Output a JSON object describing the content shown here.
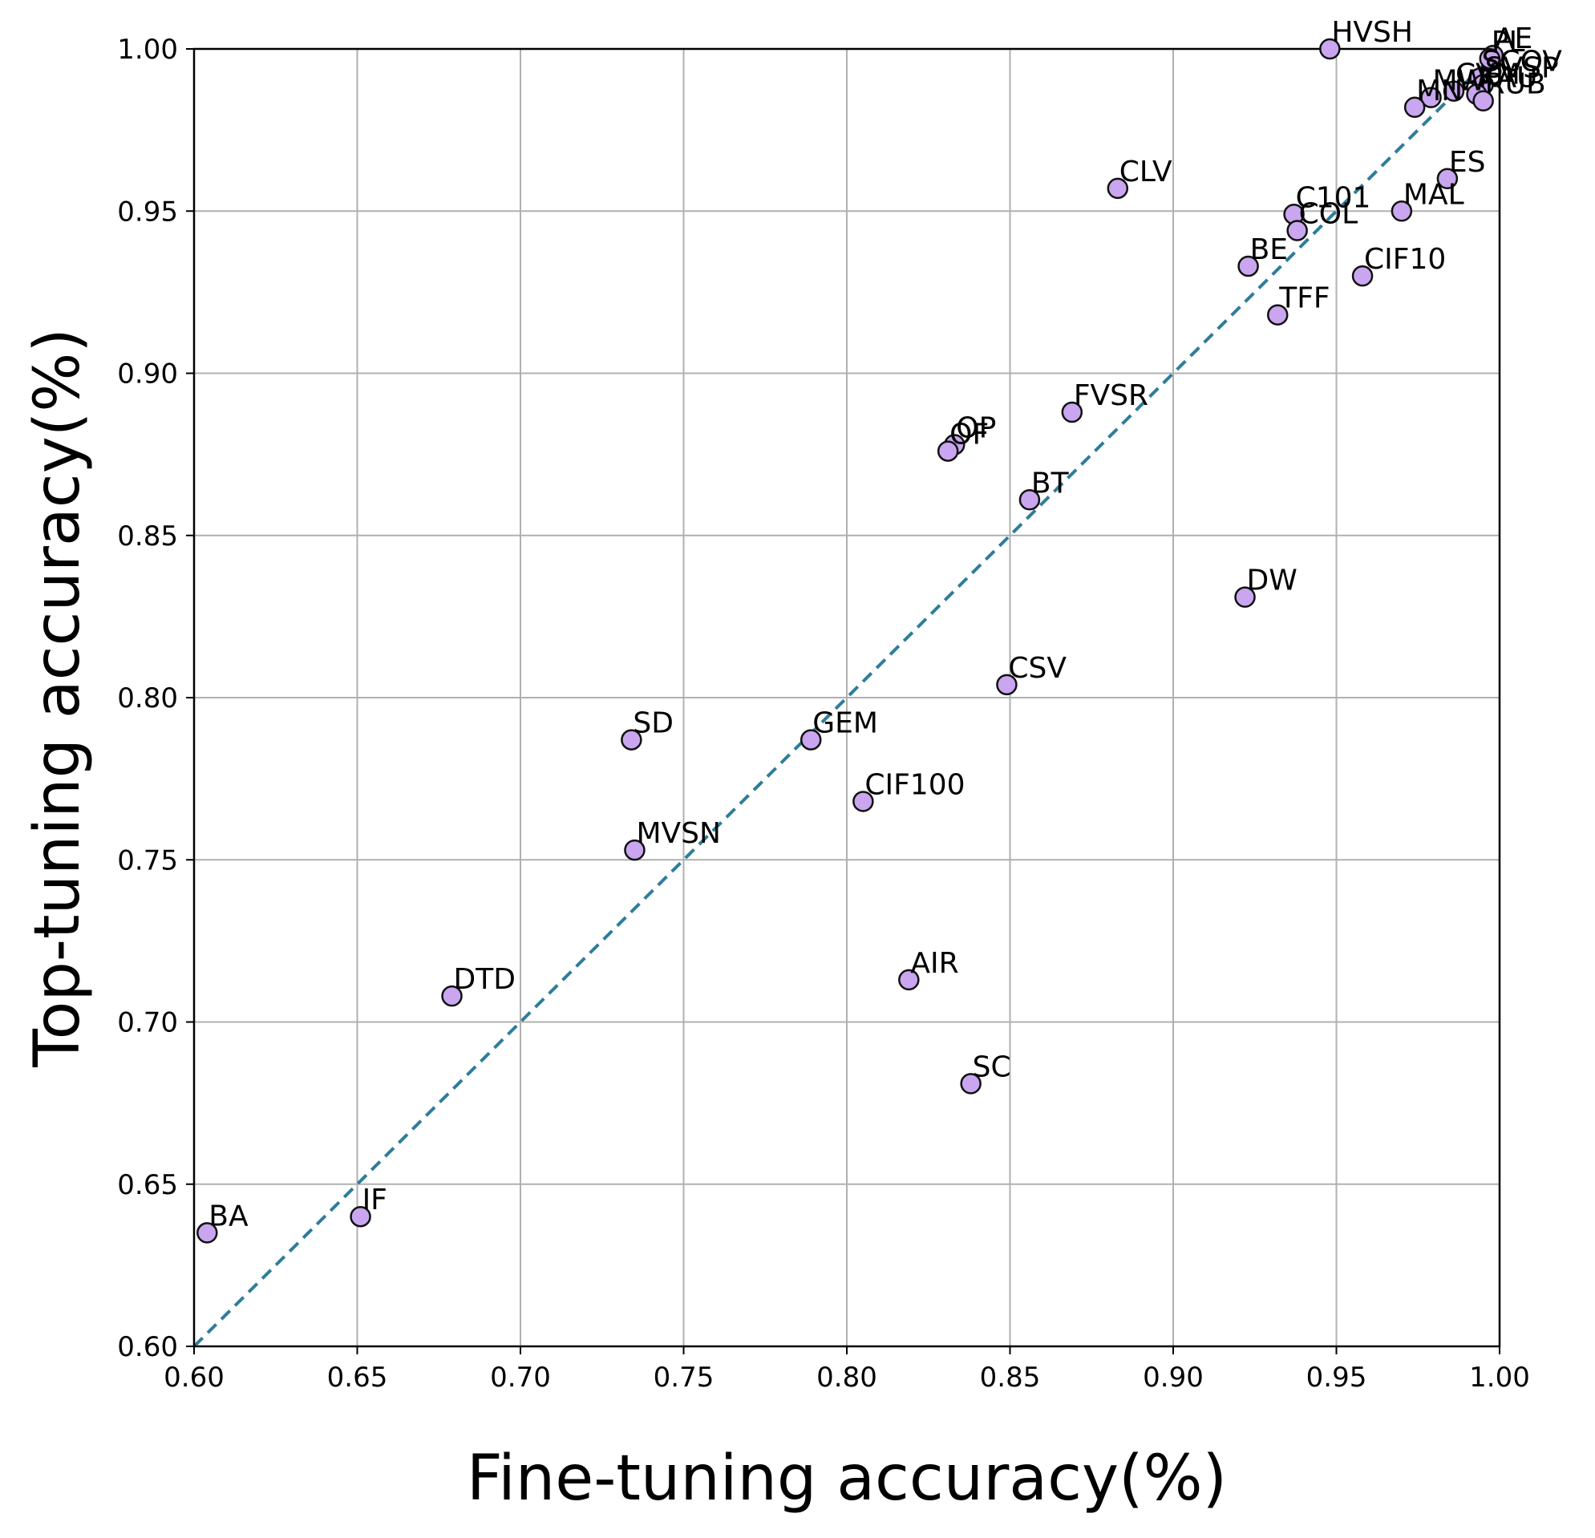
{
  "chart_data": {
    "type": "scatter",
    "xlabel": "Fine-tuning accuracy(%)",
    "ylabel": "Top-tuning accuracy(%)",
    "xlim": [
      0.6,
      1.0
    ],
    "ylim": [
      0.6,
      1.0
    ],
    "xticks": [
      "0.60",
      "0.65",
      "0.70",
      "0.75",
      "0.80",
      "0.85",
      "0.90",
      "0.95",
      "1.00"
    ],
    "yticks": [
      "0.60",
      "0.65",
      "0.70",
      "0.75",
      "0.80",
      "0.85",
      "0.90",
      "0.95",
      "1.00"
    ],
    "grid": true,
    "reference_line": {
      "from": [
        0.6,
        0.6
      ],
      "to": [
        1.0,
        1.0
      ],
      "style": "dashed",
      "color": "#2e7d9a"
    },
    "marker_color": "#c9a6ef",
    "marker_edge": "#111111",
    "points": [
      {
        "label": "HVSH",
        "x": 0.948,
        "y": 1.0
      },
      {
        "label": "AE",
        "x": 0.998,
        "y": 0.998
      },
      {
        "label": "PL",
        "x": 0.997,
        "y": 0.997
      },
      {
        "label": "SCOV",
        "x": 0.994,
        "y": 0.991
      },
      {
        "label": "SVSP",
        "x": 0.995,
        "y": 0.989
      },
      {
        "label": "CVM",
        "x": 0.986,
        "y": 0.987
      },
      {
        "label": "MW",
        "x": 0.979,
        "y": 0.985
      },
      {
        "label": "KAU",
        "x": 0.993,
        "y": 0.986
      },
      {
        "label": "RUB",
        "x": 0.995,
        "y": 0.984
      },
      {
        "label": "MN",
        "x": 0.974,
        "y": 0.982
      },
      {
        "label": "ES",
        "x": 0.984,
        "y": 0.96
      },
      {
        "label": "CLV",
        "x": 0.883,
        "y": 0.957
      },
      {
        "label": "MAL",
        "x": 0.97,
        "y": 0.95
      },
      {
        "label": "C101",
        "x": 0.937,
        "y": 0.949
      },
      {
        "label": "COL",
        "x": 0.938,
        "y": 0.944
      },
      {
        "label": "BE",
        "x": 0.923,
        "y": 0.933
      },
      {
        "label": "CIF10",
        "x": 0.958,
        "y": 0.93
      },
      {
        "label": "TFF",
        "x": 0.932,
        "y": 0.918
      },
      {
        "label": "FVSR",
        "x": 0.869,
        "y": 0.888
      },
      {
        "label": "OP",
        "x": 0.833,
        "y": 0.878
      },
      {
        "label": "OF",
        "x": 0.831,
        "y": 0.876
      },
      {
        "label": "BT",
        "x": 0.856,
        "y": 0.861
      },
      {
        "label": "DW",
        "x": 0.922,
        "y": 0.831
      },
      {
        "label": "CSV",
        "x": 0.849,
        "y": 0.804
      },
      {
        "label": "SD",
        "x": 0.734,
        "y": 0.787
      },
      {
        "label": "GEM",
        "x": 0.789,
        "y": 0.787
      },
      {
        "label": "CIF100",
        "x": 0.805,
        "y": 0.768
      },
      {
        "label": "MVSN",
        "x": 0.735,
        "y": 0.753
      },
      {
        "label": "AIR",
        "x": 0.819,
        "y": 0.713
      },
      {
        "label": "DTD",
        "x": 0.679,
        "y": 0.708
      },
      {
        "label": "SC",
        "x": 0.838,
        "y": 0.681
      },
      {
        "label": "IF",
        "x": 0.651,
        "y": 0.64
      },
      {
        "label": "BA",
        "x": 0.604,
        "y": 0.635
      }
    ]
  }
}
